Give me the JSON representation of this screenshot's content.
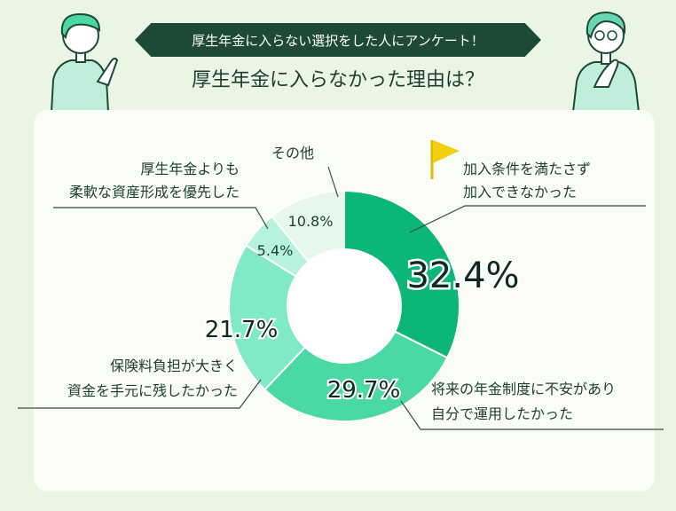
{
  "header": {
    "banner": "厚生年金に入らない選択をした人にアンケート！",
    "question": "厚生年金に入らなかった理由は？"
  },
  "chart_data": {
    "type": "pie",
    "donut": true,
    "slices": [
      {
        "label_lines": [
          "加入条件を満たさず",
          "加入できなかった"
        ],
        "value": 32.4,
        "value_label": "32.4%",
        "color": "#0cb678"
      },
      {
        "label_lines": [
          "将来の年金制度に不安があり",
          "自分で運用したかった"
        ],
        "value": 29.7,
        "value_label": "29.7%",
        "color": "#4ad9a5"
      },
      {
        "label_lines": [
          "保険料負担が大きく",
          "資金を手元に残したかった"
        ],
        "value": 21.7,
        "value_label": "21.7%",
        "color": "#80e9c7"
      },
      {
        "label_lines": [
          "厚生年金よりも",
          "柔軟な資産形成を優先した"
        ],
        "value": 5.4,
        "value_label": "5.4%",
        "color": "#b6f3dc"
      },
      {
        "label_lines": [
          "その他"
        ],
        "value": 10.8,
        "value_label": "10.8%",
        "color": "#e6f8ee"
      }
    ]
  }
}
